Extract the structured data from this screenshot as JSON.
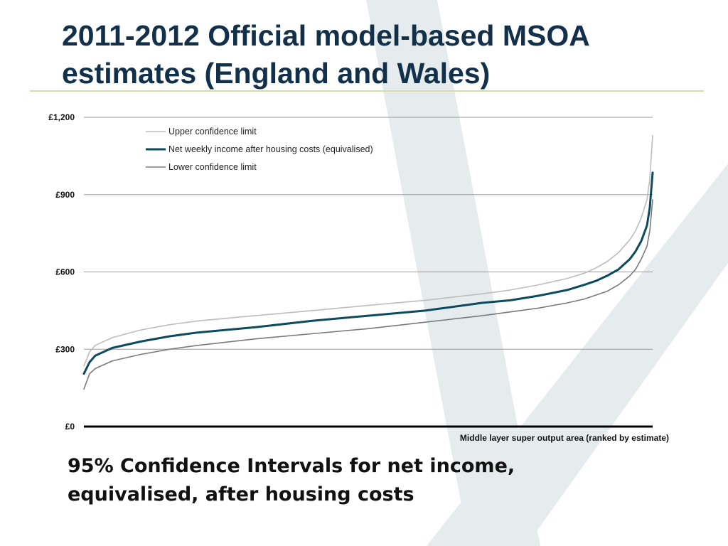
{
  "slide": {
    "title": "2011-2012 Official model-based MSOA estimates (England and Wales)",
    "caption": "95% Confidence Intervals for net income, equivalised, after housing costs"
  },
  "colors": {
    "title": "#12304a",
    "title_rule": "#d6dcae",
    "estimate": "#0c4a5e",
    "upper": "#bdbdbd",
    "lower": "#7a7a7a",
    "grid": "#9a9a9a",
    "watermark": "#e6eced"
  },
  "chart_data": {
    "type": "line",
    "xlabel": "Middle layer super output area (ranked by estimate)",
    "ylabel": "",
    "ylim": [
      0,
      1200
    ],
    "yticks": [
      {
        "value": 0,
        "label": "£0"
      },
      {
        "value": 300,
        "label": "£300"
      },
      {
        "value": 600,
        "label": "£600"
      },
      {
        "value": 900,
        "label": "£900"
      },
      {
        "value": 1200,
        "label": "£1,200"
      }
    ],
    "xlim": [
      0,
      100
    ],
    "x_unit": "percent of MSOAs ranked by estimate",
    "grid": true,
    "legend_position": "top-left",
    "series": [
      {
        "name": "Upper confidence limit",
        "style": "thin-light",
        "x": [
          0,
          1,
          2,
          5,
          10,
          15,
          20,
          30,
          40,
          50,
          60,
          70,
          75,
          80,
          85,
          88,
          90,
          92,
          94,
          96,
          97,
          98,
          99,
          99.5,
          100
        ],
        "y": [
          235,
          290,
          315,
          345,
          375,
          395,
          410,
          430,
          450,
          470,
          490,
          515,
          530,
          550,
          575,
          595,
          615,
          640,
          675,
          725,
          760,
          810,
          880,
          960,
          1130
        ]
      },
      {
        "name": "Net weekly income after housing costs (equivalised)",
        "style": "thick-dark",
        "x": [
          0,
          1,
          2,
          5,
          10,
          15,
          20,
          30,
          40,
          50,
          60,
          70,
          75,
          80,
          85,
          88,
          90,
          92,
          94,
          96,
          97,
          98,
          99,
          99.5,
          100
        ],
        "y": [
          205,
          250,
          275,
          305,
          330,
          350,
          365,
          385,
          410,
          430,
          450,
          480,
          490,
          508,
          530,
          550,
          565,
          585,
          610,
          650,
          680,
          720,
          780,
          850,
          985
        ]
      },
      {
        "name": "Lower confidence limit",
        "style": "thin-mid",
        "x": [
          0,
          1,
          2,
          5,
          10,
          15,
          20,
          30,
          40,
          50,
          60,
          70,
          75,
          80,
          85,
          88,
          90,
          92,
          94,
          96,
          97,
          98,
          99,
          99.5,
          100
        ],
        "y": [
          145,
          205,
          225,
          255,
          280,
          300,
          315,
          340,
          360,
          380,
          405,
          430,
          445,
          460,
          480,
          495,
          510,
          525,
          550,
          585,
          610,
          650,
          700,
          760,
          880
        ]
      }
    ]
  }
}
